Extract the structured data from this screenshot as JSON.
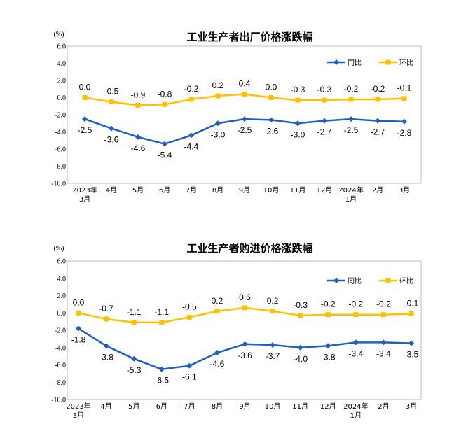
{
  "chart_data": [
    {
      "type": "line",
      "title": "工业生产者出厂价格涨跌幅",
      "ylabel": "(%)",
      "ylim": [
        -10.0,
        6.0
      ],
      "yticks": [
        "6.0",
        "4.0",
        "2.0",
        "0.0",
        "-2.0",
        "-4.0",
        "-6.0",
        "-8.0",
        "-10.0"
      ],
      "categories": [
        [
          "2023年",
          "3月"
        ],
        [
          "4月"
        ],
        [
          "5月"
        ],
        [
          "6月"
        ],
        [
          "7月"
        ],
        [
          "8月"
        ],
        [
          "9月"
        ],
        [
          "10月"
        ],
        [
          "11月"
        ],
        [
          "12月"
        ],
        [
          "2024年",
          "1月"
        ],
        [
          "2月"
        ],
        [
          "3月"
        ]
      ],
      "series": [
        {
          "name": "同比",
          "color": "#1f5fbf",
          "marker": "diamond",
          "values": [
            -2.5,
            -3.6,
            -4.6,
            -5.4,
            -4.4,
            -3.0,
            -2.5,
            -2.6,
            -3.0,
            -2.7,
            -2.5,
            -2.7,
            -2.8
          ],
          "labels": [
            "-2.5",
            "-3.6",
            "-4.6",
            "-5.4",
            "-4.4",
            "-3.0",
            "-2.5",
            "-2.6",
            "-3.0",
            "-2.7",
            "-2.5",
            "-2.7",
            "-2.8"
          ]
        },
        {
          "name": "环比",
          "color": "#ffc000",
          "marker": "square",
          "values": [
            0.0,
            -0.5,
            -0.9,
            -0.8,
            -0.2,
            0.2,
            0.4,
            0.0,
            -0.3,
            -0.3,
            -0.2,
            -0.2,
            -0.1
          ],
          "labels": [
            "0.0",
            "-0.5",
            "-0.9",
            "-0.8",
            "-0.2",
            "0.2",
            "0.4",
            "0.0",
            "-0.3",
            "-0.3",
            "-0.2",
            "-0.2",
            "-0.1"
          ]
        }
      ],
      "legend": "top-right",
      "grid": false
    },
    {
      "type": "line",
      "title": "工业生产者购进价格涨跌幅",
      "ylabel": "(%)",
      "ylim": [
        -10.0,
        6.0
      ],
      "yticks": [
        "6.0",
        "4.0",
        "2.0",
        "0.0",
        "-2.0",
        "-4.0",
        "-6.0",
        "-8.0",
        "-10.0"
      ],
      "categories": [
        [
          "2023年",
          "3月"
        ],
        [
          "4月"
        ],
        [
          "5月"
        ],
        [
          "6月"
        ],
        [
          "7月"
        ],
        [
          "8月"
        ],
        [
          "9月"
        ],
        [
          "10月"
        ],
        [
          "11月"
        ],
        [
          "12月"
        ],
        [
          "2024年",
          "1月"
        ],
        [
          "2月"
        ],
        [
          "3月"
        ]
      ],
      "series": [
        {
          "name": "同比",
          "color": "#1f5fbf",
          "marker": "diamond",
          "values": [
            -1.8,
            -3.8,
            -5.3,
            -6.5,
            -6.1,
            -4.6,
            -3.6,
            -3.7,
            -4.0,
            -3.8,
            -3.4,
            -3.4,
            -3.5
          ],
          "labels": [
            "-1.8",
            "-3.8",
            "-5.3",
            "-6.5",
            "-6.1",
            "-4.6",
            "-3.6",
            "-3.7",
            "-4.0",
            "-3.8",
            "-3.4",
            "-3.4",
            "-3.5"
          ]
        },
        {
          "name": "环比",
          "color": "#ffc000",
          "marker": "square",
          "values": [
            0.0,
            -0.7,
            -1.1,
            -1.1,
            -0.5,
            0.2,
            0.6,
            0.2,
            -0.3,
            -0.2,
            -0.2,
            -0.2,
            -0.1
          ],
          "labels": [
            "0.0",
            "-0.7",
            "-1.1",
            "-1.1",
            "-0.5",
            "0.2",
            "0.6",
            "0.2",
            "-0.3",
            "-0.2",
            "-0.2",
            "-0.2",
            "-0.1"
          ]
        }
      ],
      "legend": "top-right",
      "grid": false
    }
  ]
}
